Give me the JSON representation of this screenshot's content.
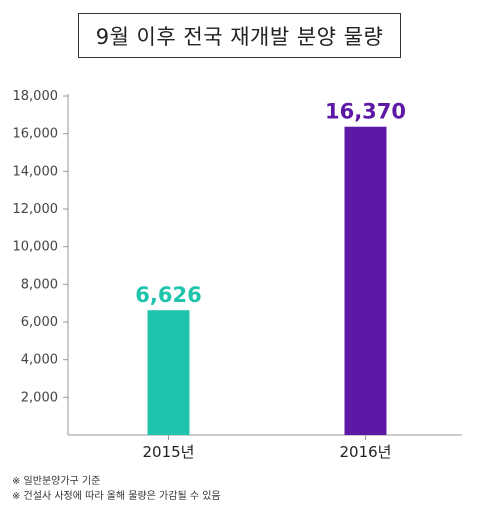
{
  "chart_data": {
    "type": "bar",
    "title": "9월 이후 전국 재개발 분양 물량",
    "categories": [
      "2015년",
      "2016년"
    ],
    "values": [
      6626,
      16370
    ],
    "value_labels": [
      "6,626",
      "16,370"
    ],
    "colors": [
      "#1fc4ad",
      "#5d19a6"
    ],
    "ylim": [
      0,
      18000
    ],
    "yticks": [
      2000,
      4000,
      6000,
      8000,
      10000,
      12000,
      14000,
      16000,
      18000
    ],
    "ytick_labels": [
      "2,000",
      "4,000",
      "6,000",
      "8,000",
      "10,000",
      "12,000",
      "14,000",
      "16,000",
      "18,000"
    ],
    "grid": false,
    "legend": "none"
  },
  "notes": [
    "※ 일반분양가구 기준",
    "※ 건설사 사정에 따라 올해 물량은 가감될 수 있음"
  ]
}
